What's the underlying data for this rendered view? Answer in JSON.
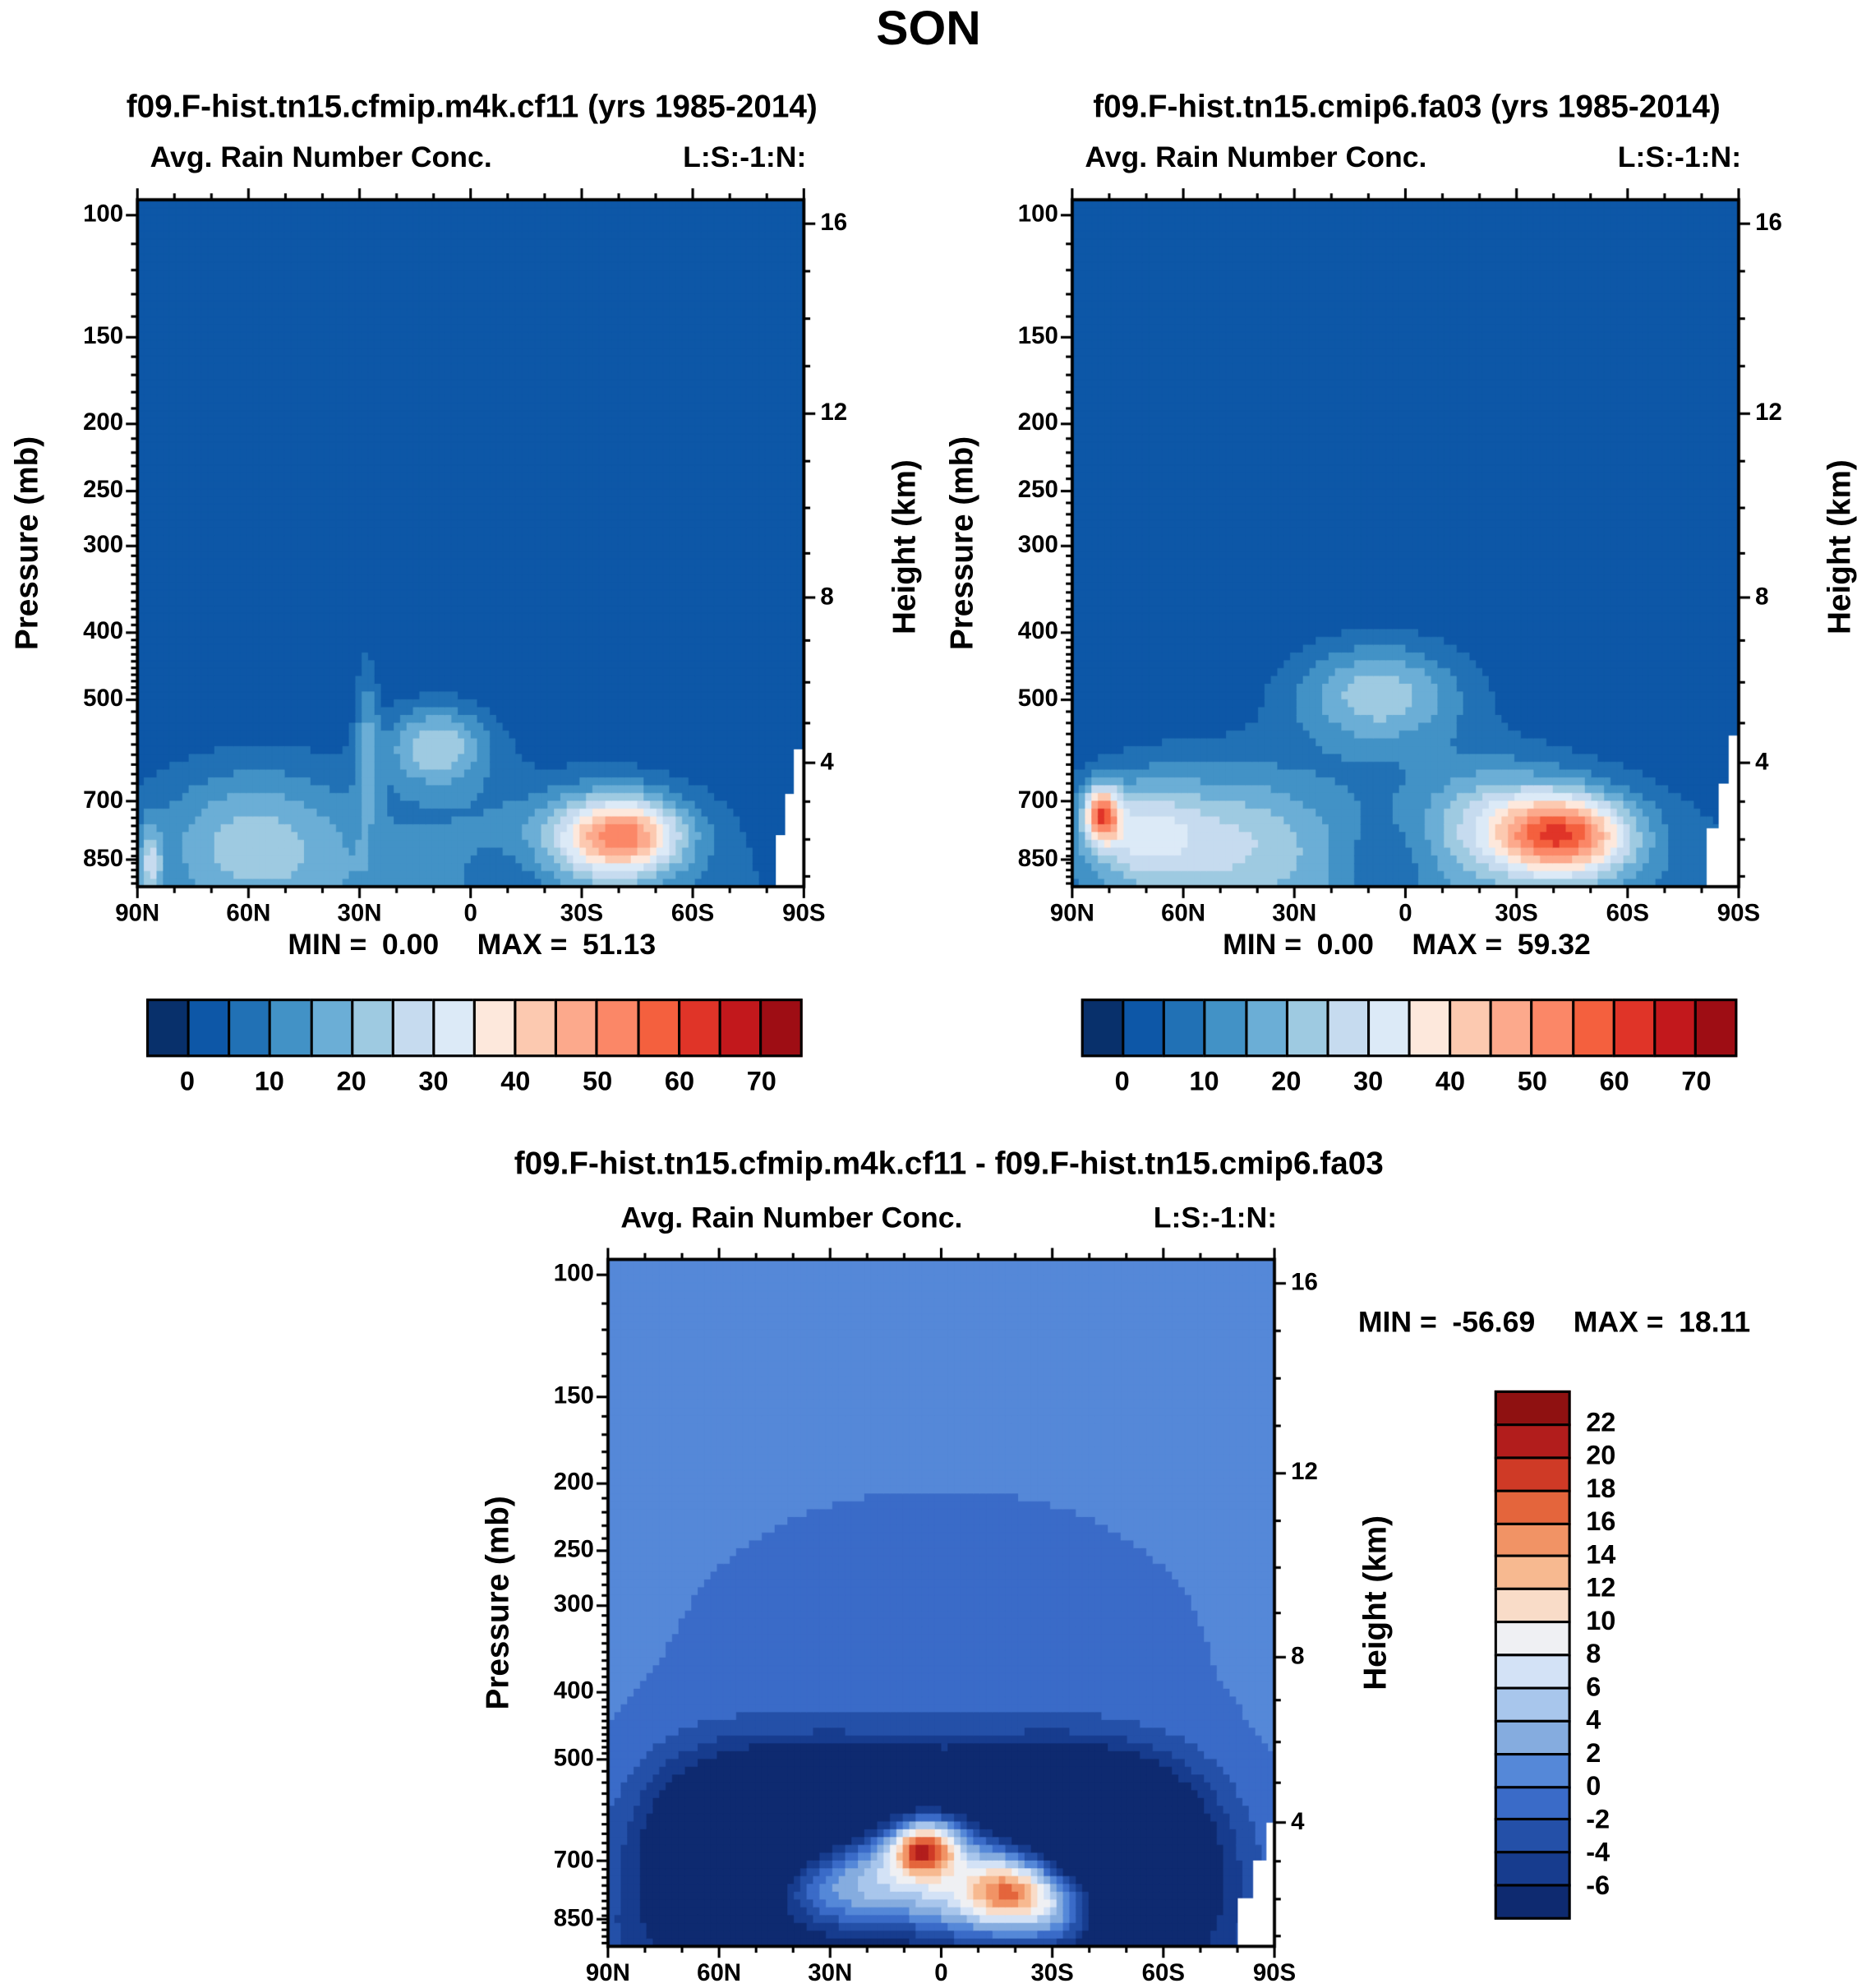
{
  "page_title": "SON",
  "chart_data": [
    {
      "type": "heatmap",
      "title": "f09.F-hist.tn15.cfmip.m4k.cf11 (yrs 1985-2014)",
      "subtitle": "Avg. Rain Number Conc.",
      "corner_label": "L:S:-1:N:",
      "stats": {
        "min_label": "MIN =",
        "min": "0.00",
        "max_label": "MAX =",
        "max": "51.13"
      },
      "x_axis": {
        "ticks": [
          "90N",
          "60N",
          "30N",
          "0",
          "30S",
          "60S",
          "90S"
        ]
      },
      "y_left": {
        "title": "Pressure (mb)",
        "ticks": [
          100,
          150,
          200,
          250,
          300,
          400,
          500,
          700,
          850
        ]
      },
      "y_right": {
        "title": "Height (km)",
        "ticks": [
          16,
          12,
          8,
          4
        ]
      },
      "levels": {
        "min": -5,
        "step": 5
      },
      "colors": [
        "#08306b",
        "#0d57a7",
        "#2171b5",
        "#4292c6",
        "#6baed6",
        "#9ecae1",
        "#c6dbef",
        "#dceaf7",
        "#fde8dc",
        "#fcc9b0",
        "#fca98c",
        "#fb8767",
        "#f4603e",
        "#e03428",
        "#c2181c",
        "#9e0d14"
      ],
      "colorbar": {
        "orientation": "horizontal",
        "labels": [
          "0",
          "10",
          "20",
          "30",
          "40",
          "50",
          "60",
          "70"
        ]
      },
      "field": {
        "background": 0,
        "blobs": [
          {
            "u": 0.17,
            "v": 0.93,
            "sx": 0.1,
            "sy": 0.075,
            "a": 16
          },
          {
            "u": 0.45,
            "v": 0.795,
            "sx": 0.055,
            "sy": 0.042,
            "a": 22
          },
          {
            "u": 0.73,
            "v": 0.925,
            "sx": 0.062,
            "sy": 0.04,
            "a": 40
          },
          {
            "u": 0.45,
            "v": 1.02,
            "sx": 0.36,
            "sy": 0.13,
            "a": 12
          },
          {
            "u": 0.345,
            "v": 0.78,
            "sx": 0.012,
            "sy": 0.09,
            "a": 12
          },
          {
            "u": 0.02,
            "v": 0.97,
            "sx": 0.012,
            "sy": 0.04,
            "a": 18
          },
          {
            "u": 0.56,
            "v": 0.99,
            "sx": 0.05,
            "sy": 0.05,
            "a": -8
          },
          {
            "u": 0.66,
            "v": 0.93,
            "sx": 0.1,
            "sy": 0.05,
            "a": 10
          }
        ],
        "masks": [
          [
            0.985,
            0.8
          ],
          [
            0.972,
            0.865
          ],
          [
            0.958,
            0.925
          ]
        ]
      }
    },
    {
      "type": "heatmap",
      "title": "f09.F-hist.tn15.cmip6.fa03 (yrs 1985-2014)",
      "subtitle": "Avg. Rain Number Conc.",
      "corner_label": "L:S:-1:N:",
      "stats": {
        "min_label": "MIN =",
        "min": "0.00",
        "max_label": "MAX =",
        "max": "59.32"
      },
      "x_axis": {
        "ticks": [
          "90N",
          "60N",
          "30N",
          "0",
          "30S",
          "60S",
          "90S"
        ]
      },
      "y_left": {
        "title": "Pressure (mb)",
        "ticks": [
          100,
          150,
          200,
          250,
          300,
          400,
          500,
          700,
          850
        ]
      },
      "y_right": {
        "title": "Height (km)",
        "ticks": [
          16,
          12,
          8,
          4
        ]
      },
      "levels": {
        "min": -5,
        "step": 5
      },
      "colors": [
        "#08306b",
        "#0d57a7",
        "#2171b5",
        "#4292c6",
        "#6baed6",
        "#9ecae1",
        "#c6dbef",
        "#dceaf7",
        "#fde8dc",
        "#fcc9b0",
        "#fca98c",
        "#fb8767",
        "#f4603e",
        "#e03428",
        "#c2181c",
        "#9e0d14"
      ],
      "colorbar": {
        "orientation": "horizontal",
        "labels": [
          "0",
          "10",
          "20",
          "30",
          "40",
          "50",
          "60",
          "70"
        ]
      },
      "field": {
        "background": 0,
        "blobs": [
          {
            "u": 0.74,
            "v": 0.925,
            "sx": 0.07,
            "sy": 0.042,
            "a": 48
          },
          {
            "u": 0.045,
            "v": 0.895,
            "sx": 0.018,
            "sy": 0.028,
            "a": 44
          },
          {
            "u": 0.1,
            "v": 0.92,
            "sx": 0.055,
            "sy": 0.05,
            "a": 16
          },
          {
            "u": 0.22,
            "v": 0.93,
            "sx": 0.12,
            "sy": 0.075,
            "a": 18
          },
          {
            "u": 0.46,
            "v": 0.72,
            "sx": 0.09,
            "sy": 0.055,
            "a": 22
          },
          {
            "u": 0.5,
            "v": 1.02,
            "sx": 0.42,
            "sy": 0.14,
            "a": 12
          },
          {
            "u": 0.47,
            "v": 0.97,
            "sx": 0.05,
            "sy": 0.05,
            "a": -8
          },
          {
            "u": 0.63,
            "v": 0.9,
            "sx": 0.08,
            "sy": 0.06,
            "a": 16
          }
        ],
        "masks": [
          [
            0.985,
            0.78
          ],
          [
            0.97,
            0.85
          ],
          [
            0.952,
            0.915
          ]
        ]
      }
    },
    {
      "type": "heatmap",
      "title": "f09.F-hist.tn15.cfmip.m4k.cf11 - f09.F-hist.tn15.cmip6.fa03",
      "subtitle": "Avg. Rain Number Conc.",
      "corner_label": "L:S:-1:N:",
      "stats": {
        "min_label": "MIN =",
        "min": "-56.69",
        "max_label": "MAX =",
        "max": "18.11"
      },
      "x_axis": {
        "ticks": [
          "90N",
          "60N",
          "30N",
          "0",
          "30S",
          "60S",
          "90S"
        ]
      },
      "y_left": {
        "title": "Pressure (mb)",
        "ticks": [
          100,
          150,
          200,
          250,
          300,
          400,
          500,
          700,
          850
        ]
      },
      "y_right": {
        "title": "Height (km)",
        "ticks": [
          16,
          12,
          8,
          4
        ]
      },
      "levels": {
        "min": -8,
        "step": 2
      },
      "colors": [
        "#0e2a70",
        "#173c8e",
        "#2450a8",
        "#3a6bc8",
        "#5588d8",
        "#85acdf",
        "#a8c6ec",
        "#d3e2f6",
        "#eff0f3",
        "#f9dcc8",
        "#f7b990",
        "#f19365",
        "#e4653c",
        "#cf3a26",
        "#b21d1c",
        "#8f1111"
      ],
      "colorbar": {
        "orientation": "vertical",
        "labels": [
          "22",
          "20",
          "18",
          "16",
          "14",
          "12",
          "10",
          "8",
          "6",
          "4",
          "2",
          "0",
          "-2",
          "-4",
          "-6"
        ]
      },
      "field": {
        "background": 0.5,
        "blobs": [
          {
            "u": 0.5,
            "v": 0.58,
            "sx": 0.26,
            "sy": 0.16,
            "a": -1.6
          },
          {
            "u": 0.17,
            "v": 0.86,
            "sx": 0.09,
            "sy": 0.09,
            "a": -14
          },
          {
            "u": 0.32,
            "v": 0.8,
            "sx": 0.1,
            "sy": 0.06,
            "a": -10
          },
          {
            "u": 0.5,
            "v": 0.77,
            "sx": 0.16,
            "sy": 0.05,
            "a": -9
          },
          {
            "u": 0.68,
            "v": 0.8,
            "sx": 0.09,
            "sy": 0.06,
            "a": -10
          },
          {
            "u": 0.8,
            "v": 0.88,
            "sx": 0.09,
            "sy": 0.09,
            "a": -14
          },
          {
            "u": 0.45,
            "v": 1.02,
            "sx": 0.3,
            "sy": 0.09,
            "a": -10
          },
          {
            "u": 0.475,
            "v": 0.858,
            "sx": 0.034,
            "sy": 0.027,
            "a": 18
          },
          {
            "u": 0.475,
            "v": 0.858,
            "sx": 0.085,
            "sy": 0.055,
            "a": 7
          },
          {
            "u": 0.6,
            "v": 0.915,
            "sx": 0.045,
            "sy": 0.033,
            "a": 14
          },
          {
            "u": 0.55,
            "v": 0.95,
            "sx": 0.07,
            "sy": 0.04,
            "a": 8
          },
          {
            "u": 0.36,
            "v": 0.92,
            "sx": 0.09,
            "sy": 0.045,
            "a": 9
          },
          {
            "u": 0.67,
            "v": 0.945,
            "sx": 0.05,
            "sy": 0.038,
            "a": 10
          }
        ],
        "masks": [
          [
            0.988,
            0.82
          ],
          [
            0.968,
            0.875
          ],
          [
            0.945,
            0.93
          ]
        ]
      }
    }
  ]
}
